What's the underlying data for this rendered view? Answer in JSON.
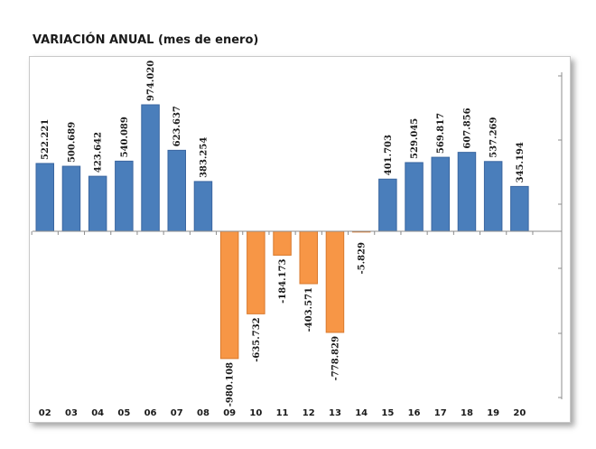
{
  "chart_data": {
    "type": "bar",
    "title": "VARIACIÓN ANUAL (mes de enero)",
    "categories": [
      "02",
      "03",
      "04",
      "05",
      "06",
      "07",
      "08",
      "09",
      "10",
      "11",
      "12",
      "13",
      "14",
      "15",
      "16",
      "17",
      "18",
      "19",
      "20"
    ],
    "values": [
      522221,
      500689,
      423642,
      540089,
      974020,
      623637,
      383254,
      -980108,
      -635732,
      -184173,
      -403571,
      -778829,
      -5829,
      401703,
      529045,
      569817,
      607856,
      537269,
      345194
    ],
    "value_labels": [
      "522.221",
      "500.689",
      "423.642",
      "540.089",
      "974.020",
      "623.637",
      "383.254",
      "-980.108",
      "-635.732",
      "-184.173",
      "-403.571",
      "-778.829",
      "-5.829",
      "401.703",
      "529.045",
      "569.817",
      "607.856",
      "537.269",
      "345.194"
    ],
    "colors": {
      "positive": "#4a7ebb",
      "negative": "#f79646",
      "positive_edge": "#3a66a0",
      "negative_edge": "#d97a2e"
    },
    "ylim": [
      -1300000,
      1200000
    ],
    "grid": false,
    "legend": "none"
  }
}
